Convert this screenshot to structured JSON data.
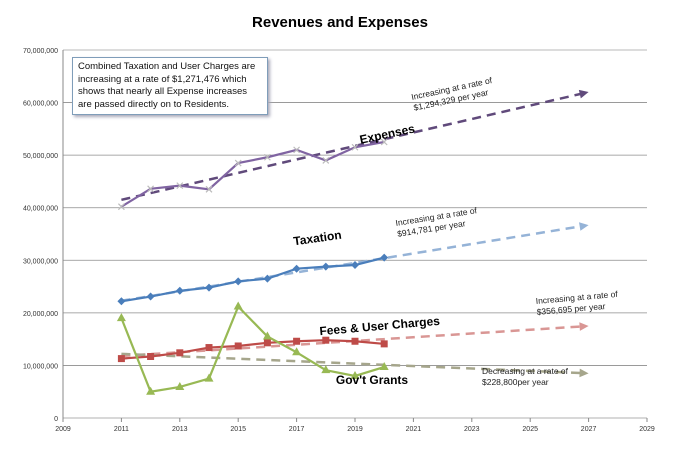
{
  "chart_data": {
    "type": "line",
    "title": "Revenues and Expenses",
    "xlabel": "",
    "ylabel": "",
    "xlim": [
      2009,
      2029
    ],
    "ylim": [
      0,
      70000000
    ],
    "x_ticks": [
      "2009",
      "2011",
      "2013",
      "2015",
      "2017",
      "2019",
      "2021",
      "2023",
      "2025",
      "2027",
      "2029"
    ],
    "y_ticks": [
      "0",
      "10,000,000",
      "20,000,000",
      "30,000,000",
      "40,000,000",
      "50,000,000",
      "60,000,000",
      "70,000,000"
    ],
    "grid": "horizontal",
    "x": [
      2011,
      2012,
      2013,
      2014,
      2015,
      2016,
      2017,
      2018,
      2019,
      2020
    ],
    "series": [
      {
        "name": "Expenses",
        "color": "#8064a2",
        "marker": "x",
        "values": [
          40200000,
          43600000,
          44200000,
          43500000,
          48500000,
          49600000,
          51000000,
          49000000,
          51500000,
          52500000
        ],
        "trend": {
          "color": "#604a7b",
          "from": [
            2011,
            41500000
          ],
          "to": [
            2027,
            62000000
          ]
        },
        "label": "Expenses",
        "annotation": [
          "Increasing at a rate of",
          "$1,294,329  per year"
        ]
      },
      {
        "name": "Taxation",
        "color": "#4a7ebb",
        "marker": "diamond",
        "values": [
          22200000,
          23100000,
          24200000,
          24800000,
          26000000,
          26500000,
          28400000,
          28800000,
          29100000,
          30500000
        ],
        "trend": {
          "color": "#95b3d7",
          "from": [
            2011,
            22300000
          ],
          "to": [
            2027,
            36700000
          ]
        },
        "label": "Taxation",
        "annotation": [
          "Increasing at a rate of",
          "$914,781 per year"
        ]
      },
      {
        "name": "Fees & User Charges",
        "color": "#be4b48",
        "marker": "square",
        "values": [
          11300000,
          11700000,
          12400000,
          13400000,
          13700000,
          14300000,
          14600000,
          14800000,
          14600000,
          14100000
        ],
        "trend": {
          "color": "#d99694",
          "from": [
            2011,
            11800000
          ],
          "to": [
            2027,
            17500000
          ]
        },
        "label": "Fees & User Charges",
        "annotation": [
          "Increasing at a rate of",
          "$356,695  per year"
        ]
      },
      {
        "name": "Gov't Grants",
        "color": "#98b954",
        "marker": "triangle",
        "values": [
          19000000,
          5000000,
          5900000,
          7500000,
          21200000,
          15500000,
          12500000,
          9100000,
          8000000,
          9700000
        ],
        "trend": {
          "color": "#a6a68c",
          "from": [
            2011,
            12200000
          ],
          "to": [
            2027,
            8500000
          ]
        },
        "label": "Gov't Grants",
        "annotation": [
          "Decreasing at a rate of",
          "$228,800per year"
        ]
      }
    ],
    "annotation_box": "Combined Taxation and User Charges are increasing at a rate of $1,271,476  which shows that nearly all Expense increases are passed directly on to Residents."
  }
}
